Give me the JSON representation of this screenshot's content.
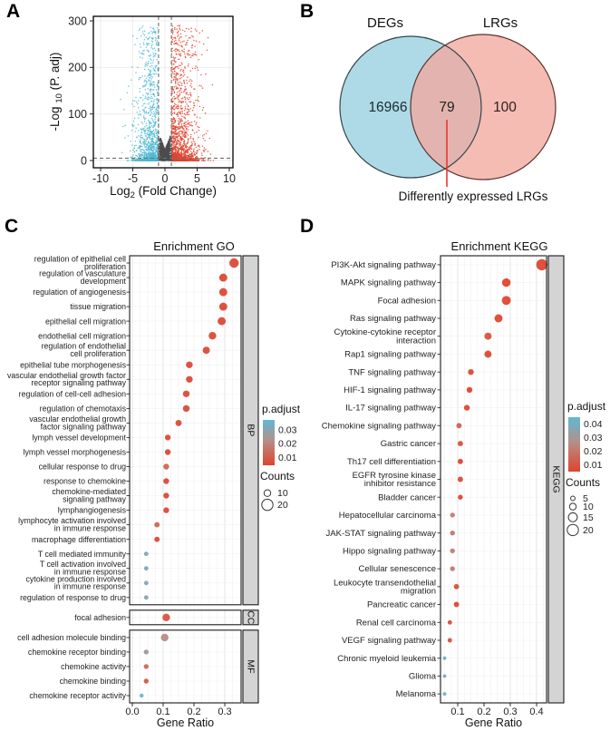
{
  "figure": {
    "panel_letters": {
      "a": "A",
      "b": "B",
      "c": "C",
      "d": "D"
    }
  },
  "colors": {
    "up_red": "#E0432E",
    "down_blue": "#4FB8D5",
    "nonsig_gray": "#4D4D4D",
    "venn_left_fill": "#AEDAE7",
    "venn_right_fill": "#F2A99F",
    "venn_left_stroke": "#33454d",
    "venn_right_stroke": "#5a332f",
    "strip_fill": "#D4D4D4",
    "annotation_red": "#E23B2E",
    "scale_red": "#E0432E",
    "scale_mid": "#B49089",
    "scale_blue": "#5FB9D4"
  },
  "chart_data": [
    {
      "id": "volcano",
      "panel": "A",
      "type": "scatter",
      "xlabel": {
        "base": "Log",
        "sub": "2",
        "rest": " (Fold Change)"
      },
      "ylabel": {
        "base": "-Log ",
        "sub": "10",
        "rest": " (P. adj)"
      },
      "xticks": [
        -10,
        -5,
        0,
        5,
        10
      ],
      "yticks": [
        0,
        100,
        200,
        300
      ],
      "xlim": [
        -11,
        10.6
      ],
      "ylim": [
        -16,
        310
      ],
      "threshold_vlines": [
        -1,
        1
      ],
      "threshold_hline": 5,
      "point_groups": [
        {
          "name": "down-regulated",
          "color": "#4FB8D5",
          "n": 1400,
          "sign": -1,
          "sd": 1.8,
          "y_max": 292,
          "y_exp": 4.5
        },
        {
          "name": "up-regulated",
          "color": "#E0432E",
          "n": 1700,
          "sign": 1,
          "sd": 2.0,
          "y_max": 292,
          "y_exp": 4
        },
        {
          "name": "not-significant",
          "color": "#4D4D4D",
          "n": 1600,
          "sign": 0,
          "sd": 0.42,
          "y_max": 62,
          "y_exp": 1.2
        }
      ]
    },
    {
      "id": "venn",
      "panel": "B",
      "type": "venn",
      "sets": [
        {
          "label": "DEGs",
          "value": "16966"
        },
        {
          "label": "LRGs",
          "value": "100"
        }
      ],
      "overlap_value": "79",
      "annotation": "Differently expressed LRGs"
    },
    {
      "id": "go",
      "panel": "C",
      "type": "dotplot",
      "title": "Enrichment GO",
      "xlabel": "Gene Ratio",
      "xticks": [
        0,
        0.1,
        0.2,
        0.3
      ],
      "xlim": [
        0,
        0.355
      ],
      "legend": {
        "color_title": "p.adjust",
        "color_ticks": [
          0.03,
          0.02,
          0.01
        ],
        "color_domain": [
          0.0045,
          0.037
        ],
        "size_title": "Counts",
        "size_ticks": [
          10,
          20
        ]
      },
      "facets": [
        {
          "name": "BP",
          "items": [
            {
              "label": [
                "regulation of epithelial cell",
                "proliferation"
              ],
              "gene_ratio": 0.33,
              "p_adjust": 0.006,
              "count": 16
            },
            {
              "label": [
                "regulation of vasculature",
                "development"
              ],
              "gene_ratio": 0.295,
              "p_adjust": 0.006,
              "count": 13
            },
            {
              "label": [
                "regulation of angiogenesis"
              ],
              "gene_ratio": 0.295,
              "p_adjust": 0.006,
              "count": 13
            },
            {
              "label": [
                "tissue migration"
              ],
              "gene_ratio": 0.295,
              "p_adjust": 0.006,
              "count": 13
            },
            {
              "label": [
                "epithelial cell migration"
              ],
              "gene_ratio": 0.29,
              "p_adjust": 0.006,
              "count": 13
            },
            {
              "label": [
                "endothelial cell migration"
              ],
              "gene_ratio": 0.26,
              "p_adjust": 0.006,
              "count": 12
            },
            {
              "label": [
                "regulation of endothelial",
                "cell proliferation"
              ],
              "gene_ratio": 0.24,
              "p_adjust": 0.006,
              "count": 11
            },
            {
              "label": [
                "epithelial tube morphogenesis"
              ],
              "gene_ratio": 0.185,
              "p_adjust": 0.006,
              "count": 10
            },
            {
              "label": [
                "vascular endothelial growth factor",
                "receptor signaling pathway"
              ],
              "gene_ratio": 0.185,
              "p_adjust": 0.006,
              "count": 10
            },
            {
              "label": [
                "regulation of cell-cell adhesion"
              ],
              "gene_ratio": 0.175,
              "p_adjust": 0.006,
              "count": 10
            },
            {
              "label": [
                "regulation of chemotaxis"
              ],
              "gene_ratio": 0.175,
              "p_adjust": 0.006,
              "count": 10
            },
            {
              "label": [
                "vascular endothelial growth",
                "factor signaling pathway"
              ],
              "gene_ratio": 0.15,
              "p_adjust": 0.006,
              "count": 9
            },
            {
              "label": [
                "lymph vessel development"
              ],
              "gene_ratio": 0.115,
              "p_adjust": 0.006,
              "count": 8
            },
            {
              "label": [
                "lymph vessel morphogenesis"
              ],
              "gene_ratio": 0.115,
              "p_adjust": 0.006,
              "count": 8
            },
            {
              "label": [
                "cellular response to drug"
              ],
              "gene_ratio": 0.11,
              "p_adjust": 0.012,
              "count": 8
            },
            {
              "label": [
                "response to chemokine"
              ],
              "gene_ratio": 0.11,
              "p_adjust": 0.006,
              "count": 8
            },
            {
              "label": [
                "chemokine-mediated",
                "signaling pathway"
              ],
              "gene_ratio": 0.11,
              "p_adjust": 0.006,
              "count": 8
            },
            {
              "label": [
                "lymphangiogenesis"
              ],
              "gene_ratio": 0.11,
              "p_adjust": 0.006,
              "count": 8
            },
            {
              "label": [
                "lymphocyte activation involved",
                "in immune response"
              ],
              "gene_ratio": 0.08,
              "p_adjust": 0.012,
              "count": 7
            },
            {
              "label": [
                "macrophage differentiation"
              ],
              "gene_ratio": 0.08,
              "p_adjust": 0.006,
              "count": 7
            },
            {
              "label": [
                "T cell mediated immunity"
              ],
              "gene_ratio": 0.045,
              "p_adjust": 0.03,
              "count": 5
            },
            {
              "label": [
                "T cell activation involved",
                "in immune response"
              ],
              "gene_ratio": 0.045,
              "p_adjust": 0.031,
              "count": 5
            },
            {
              "label": [
                "cytokine production involved",
                "in immune response"
              ],
              "gene_ratio": 0.045,
              "p_adjust": 0.03,
              "count": 5
            },
            {
              "label": [
                "regulation of response to drug"
              ],
              "gene_ratio": 0.045,
              "p_adjust": 0.029,
              "count": 5
            }
          ]
        },
        {
          "name": "CC",
          "items": [
            {
              "label": [
                "focal adhesion"
              ],
              "gene_ratio": 0.11,
              "p_adjust": 0.008,
              "count": 12
            }
          ]
        },
        {
          "name": "MF",
          "items": [
            {
              "label": [
                "cell adhesion molecule binding"
              ],
              "gene_ratio": 0.105,
              "p_adjust": 0.02,
              "count": 12
            },
            {
              "label": [
                "chemokine receptor binding"
              ],
              "gene_ratio": 0.045,
              "p_adjust": 0.024,
              "count": 6
            },
            {
              "label": [
                "chemokine activity"
              ],
              "gene_ratio": 0.045,
              "p_adjust": 0.012,
              "count": 6
            },
            {
              "label": [
                "chemokine binding"
              ],
              "gene_ratio": 0.045,
              "p_adjust": 0.009,
              "count": 6
            },
            {
              "label": [
                "chemokine receptor activity"
              ],
              "gene_ratio": 0.03,
              "p_adjust": 0.036,
              "count": 4
            }
          ]
        }
      ]
    },
    {
      "id": "kegg",
      "panel": "D",
      "type": "dotplot",
      "title": "Enrichment KEGG",
      "xlabel": "Gene Ratio",
      "xticks": [
        0.1,
        0.2,
        0.3,
        0.4
      ],
      "xlim": [
        0.034,
        0.44
      ],
      "legend": {
        "color_title": "p.adjust",
        "color_ticks": [
          0.04,
          0.03,
          0.02,
          0.01
        ],
        "color_domain": [
          0.005,
          0.045
        ],
        "size_title": "Counts",
        "size_ticks": [
          5,
          10,
          15,
          20
        ]
      },
      "facets": [
        {
          "name": "KEGG",
          "items": [
            {
              "label": [
                "PI3K-Akt signaling pathway"
              ],
              "gene_ratio": 0.42,
              "p_adjust": 0.006,
              "count": 20
            },
            {
              "label": [
                "MAPK signaling pathway"
              ],
              "gene_ratio": 0.285,
              "p_adjust": 0.006,
              "count": 14
            },
            {
              "label": [
                "Focal adhesion"
              ],
              "gene_ratio": 0.285,
              "p_adjust": 0.006,
              "count": 15
            },
            {
              "label": [
                "Ras signaling pathway"
              ],
              "gene_ratio": 0.255,
              "p_adjust": 0.006,
              "count": 13
            },
            {
              "label": [
                "Cytokine-cytokine receptor",
                "interaction"
              ],
              "gene_ratio": 0.215,
              "p_adjust": 0.009,
              "count": 11
            },
            {
              "label": [
                "Rap1 signaling pathway"
              ],
              "gene_ratio": 0.215,
              "p_adjust": 0.006,
              "count": 11
            },
            {
              "label": [
                "TNF signaling pathway"
              ],
              "gene_ratio": 0.15,
              "p_adjust": 0.006,
              "count": 8
            },
            {
              "label": [
                "HIF-1 signaling pathway"
              ],
              "gene_ratio": 0.145,
              "p_adjust": 0.006,
              "count": 8
            },
            {
              "label": [
                "IL-17 signaling pathway"
              ],
              "gene_ratio": 0.135,
              "p_adjust": 0.006,
              "count": 8
            },
            {
              "label": [
                "Chemokine signaling pathway"
              ],
              "gene_ratio": 0.105,
              "p_adjust": 0.013,
              "count": 7
            },
            {
              "label": [
                "Gastric cancer"
              ],
              "gene_ratio": 0.11,
              "p_adjust": 0.009,
              "count": 7
            },
            {
              "label": [
                "Th17 cell differentiation"
              ],
              "gene_ratio": 0.11,
              "p_adjust": 0.006,
              "count": 7
            },
            {
              "label": [
                "EGFR tyrosine kinase",
                "inhibitor resistance"
              ],
              "gene_ratio": 0.11,
              "p_adjust": 0.007,
              "count": 7
            },
            {
              "label": [
                "Bladder cancer"
              ],
              "gene_ratio": 0.11,
              "p_adjust": 0.006,
              "count": 6
            },
            {
              "label": [
                "Hepatocellular carcinoma"
              ],
              "gene_ratio": 0.08,
              "p_adjust": 0.02,
              "count": 6
            },
            {
              "label": [
                "JAK-STAT signaling pathway"
              ],
              "gene_ratio": 0.08,
              "p_adjust": 0.019,
              "count": 6
            },
            {
              "label": [
                "Hippo signaling pathway"
              ],
              "gene_ratio": 0.08,
              "p_adjust": 0.02,
              "count": 6
            },
            {
              "label": [
                "Cellular senescence"
              ],
              "gene_ratio": 0.08,
              "p_adjust": 0.019,
              "count": 6
            },
            {
              "label": [
                "Leukocyte transendothelial",
                "migration"
              ],
              "gene_ratio": 0.095,
              "p_adjust": 0.008,
              "count": 7
            },
            {
              "label": [
                "Pancreatic cancer"
              ],
              "gene_ratio": 0.095,
              "p_adjust": 0.006,
              "count": 7
            },
            {
              "label": [
                "Renal cell carcinoma"
              ],
              "gene_ratio": 0.07,
              "p_adjust": 0.008,
              "count": 5
            },
            {
              "label": [
                "VEGF signaling pathway"
              ],
              "gene_ratio": 0.07,
              "p_adjust": 0.008,
              "count": 5
            },
            {
              "label": [
                "Chronic myeloid leukemia"
              ],
              "gene_ratio": 0.05,
              "p_adjust": 0.041,
              "count": 3
            },
            {
              "label": [
                "Glioma"
              ],
              "gene_ratio": 0.05,
              "p_adjust": 0.04,
              "count": 3
            },
            {
              "label": [
                "Melanoma"
              ],
              "gene_ratio": 0.05,
              "p_adjust": 0.04,
              "count": 3
            }
          ]
        }
      ]
    }
  ]
}
